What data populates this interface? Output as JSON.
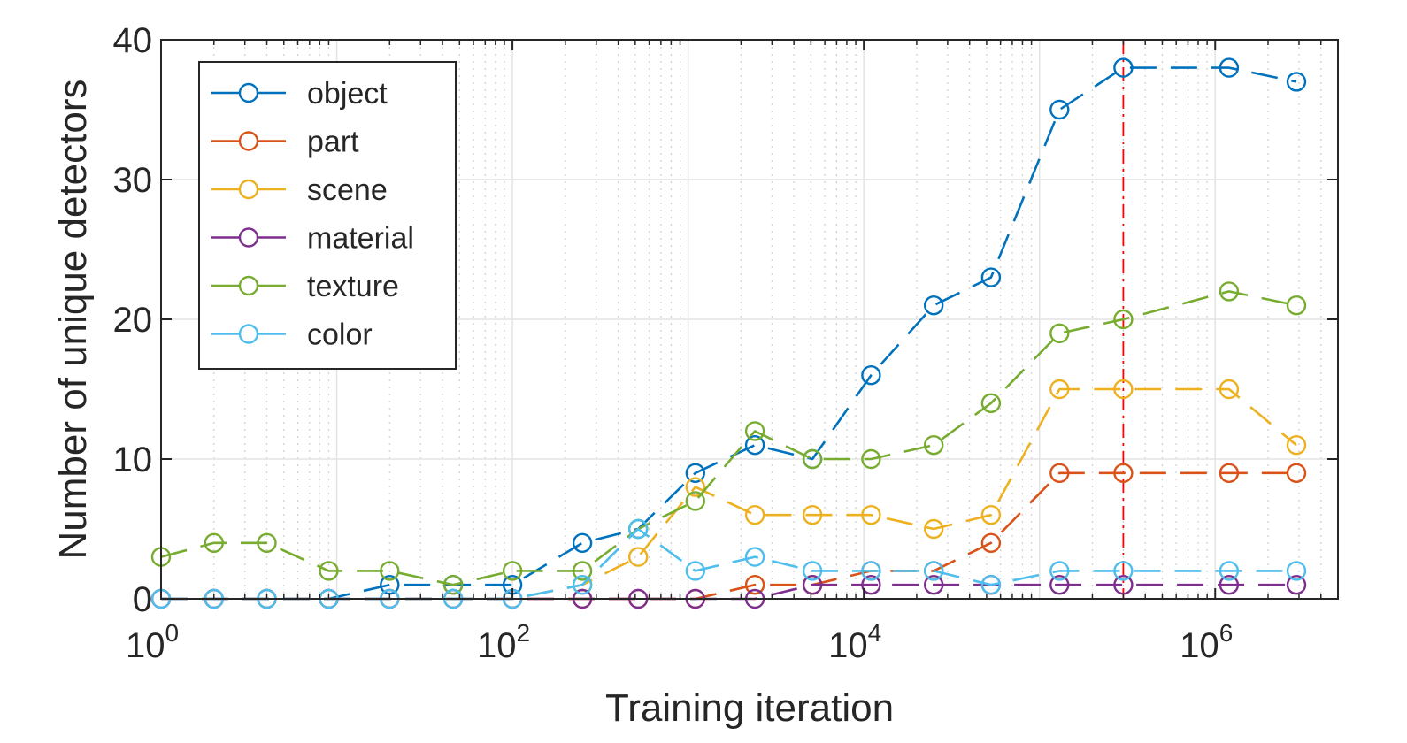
{
  "chart_data": {
    "type": "line",
    "title": "",
    "xlabel": "Training iteration",
    "ylabel": "Number of unique detectors",
    "xscale": "log",
    "xlim": [
      1,
      5000000
    ],
    "ylim": [
      0,
      40
    ],
    "x_ticks": [
      {
        "value": 1,
        "base": "10",
        "exp": "0"
      },
      {
        "value": 100,
        "base": "10",
        "exp": "2"
      },
      {
        "value": 10000,
        "base": "10",
        "exp": "4"
      },
      {
        "value": 1000000,
        "base": "10",
        "exp": "6"
      }
    ],
    "y_ticks": [
      {
        "value": 0,
        "label": "0"
      },
      {
        "value": 10,
        "label": "10"
      },
      {
        "value": 20,
        "label": "20"
      },
      {
        "value": 30,
        "label": "30"
      },
      {
        "value": 40,
        "label": "40"
      }
    ],
    "grid": true,
    "legend_position": "top-left",
    "reference_line": {
      "x": 300000,
      "color": "#ff0000",
      "style": "dash-dot"
    },
    "series": [
      {
        "name": "object",
        "color": "#0072BD",
        "points": [
          [
            1,
            0
          ],
          [
            2,
            0
          ],
          [
            4,
            0
          ],
          [
            9,
            0
          ],
          [
            20,
            1
          ],
          [
            46,
            1
          ],
          [
            100,
            1
          ],
          [
            250,
            4
          ],
          [
            520,
            5
          ],
          [
            1100,
            9
          ],
          [
            2400,
            11
          ],
          [
            5100,
            10
          ],
          [
            11000,
            16
          ],
          [
            25000,
            21
          ],
          [
            53000,
            23
          ],
          [
            130000,
            35
          ],
          [
            300000,
            38
          ],
          [
            1200000,
            38
          ],
          [
            2900000,
            37
          ]
        ]
      },
      {
        "name": "part",
        "color": "#D95319",
        "points": [
          [
            1,
            0
          ],
          [
            2,
            0
          ],
          [
            4,
            0
          ],
          [
            9,
            0
          ],
          [
            20,
            0
          ],
          [
            46,
            0
          ],
          [
            100,
            0
          ],
          [
            250,
            0
          ],
          [
            520,
            0
          ],
          [
            1100,
            0
          ],
          [
            2400,
            1
          ],
          [
            5100,
            1
          ],
          [
            11000,
            2
          ],
          [
            25000,
            2
          ],
          [
            53000,
            4
          ],
          [
            130000,
            9
          ],
          [
            300000,
            9
          ],
          [
            1200000,
            9
          ],
          [
            2900000,
            9
          ]
        ]
      },
      {
        "name": "scene",
        "color": "#EDB120",
        "points": [
          [
            1,
            0
          ],
          [
            2,
            0
          ],
          [
            4,
            0
          ],
          [
            9,
            0
          ],
          [
            20,
            0
          ],
          [
            46,
            0
          ],
          [
            100,
            0
          ],
          [
            250,
            1
          ],
          [
            520,
            3
          ],
          [
            1100,
            8
          ],
          [
            2400,
            6
          ],
          [
            5100,
            6
          ],
          [
            11000,
            6
          ],
          [
            25000,
            5
          ],
          [
            53000,
            6
          ],
          [
            130000,
            15
          ],
          [
            300000,
            15
          ],
          [
            1200000,
            15
          ],
          [
            2900000,
            11
          ]
        ]
      },
      {
        "name": "material",
        "color": "#7E2F8E",
        "points": [
          [
            1,
            0
          ],
          [
            2,
            0
          ],
          [
            4,
            0
          ],
          [
            9,
            0
          ],
          [
            20,
            0
          ],
          [
            46,
            0
          ],
          [
            100,
            0
          ],
          [
            250,
            0
          ],
          [
            520,
            0
          ],
          [
            1100,
            0
          ],
          [
            2400,
            0
          ],
          [
            5100,
            1
          ],
          [
            11000,
            1
          ],
          [
            25000,
            1
          ],
          [
            53000,
            1
          ],
          [
            130000,
            1
          ],
          [
            300000,
            1
          ],
          [
            1200000,
            1
          ],
          [
            2900000,
            1
          ]
        ]
      },
      {
        "name": "texture",
        "color": "#77AC30",
        "points": [
          [
            1,
            3
          ],
          [
            2,
            4
          ],
          [
            4,
            4
          ],
          [
            9,
            2
          ],
          [
            20,
            2
          ],
          [
            46,
            1
          ],
          [
            100,
            2
          ],
          [
            250,
            2
          ],
          [
            520,
            5
          ],
          [
            1100,
            7
          ],
          [
            2400,
            12
          ],
          [
            5100,
            10
          ],
          [
            11000,
            10
          ],
          [
            25000,
            11
          ],
          [
            53000,
            14
          ],
          [
            130000,
            19
          ],
          [
            300000,
            20
          ],
          [
            1200000,
            22
          ],
          [
            2900000,
            21
          ]
        ]
      },
      {
        "name": "color",
        "color": "#4DBEEE",
        "points": [
          [
            1,
            0
          ],
          [
            2,
            0
          ],
          [
            4,
            0
          ],
          [
            9,
            0
          ],
          [
            20,
            0
          ],
          [
            46,
            0
          ],
          [
            100,
            0
          ],
          [
            250,
            1
          ],
          [
            520,
            5
          ],
          [
            1100,
            2
          ],
          [
            2400,
            3
          ],
          [
            5100,
            2
          ],
          [
            11000,
            2
          ],
          [
            25000,
            2
          ],
          [
            53000,
            1
          ],
          [
            130000,
            2
          ],
          [
            300000,
            2
          ],
          [
            1200000,
            2
          ],
          [
            2900000,
            2
          ]
        ]
      }
    ]
  }
}
